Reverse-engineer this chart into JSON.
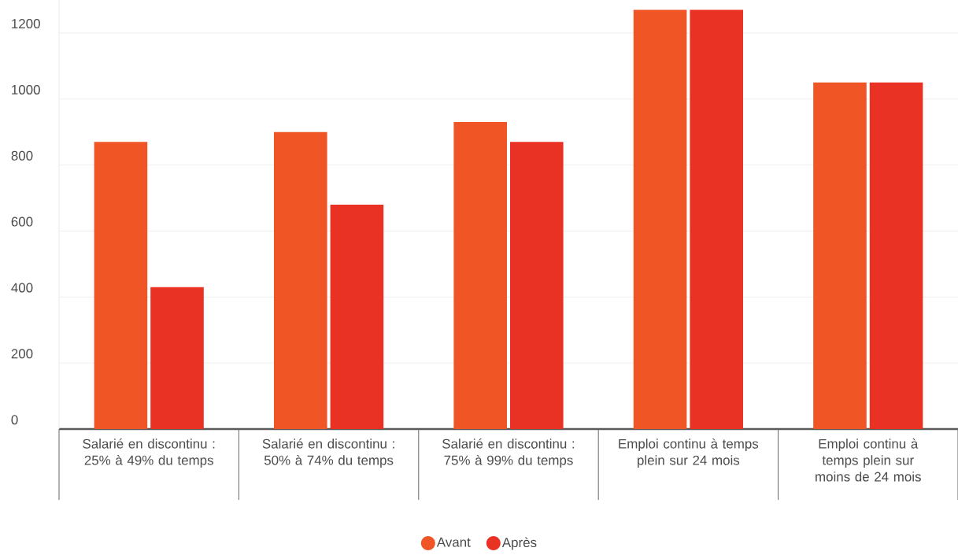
{
  "chart_data": {
    "type": "bar",
    "categories": [
      "Salarié en discontinu : 25% à 49% du temps",
      "Salarié en discontinu : 50% à 74% du temps",
      "Salarié en discontinu : 75% à 99% du temps",
      "Emploi continu à temps plein sur 24 mois",
      "Emploi continu à temps plein sur moins de 24 mois"
    ],
    "series": [
      {
        "name": "Avant",
        "color": "#ef5525",
        "values": [
          870,
          900,
          930,
          1270,
          1050
        ]
      },
      {
        "name": "Après",
        "color": "#e93223",
        "values": [
          430,
          680,
          870,
          1270,
          1050
        ]
      }
    ],
    "ylim": [
      0,
      1300
    ],
    "yticks": [
      0,
      200,
      400,
      600,
      800,
      1000,
      1200
    ],
    "grid": "y",
    "legend": "bottom"
  }
}
